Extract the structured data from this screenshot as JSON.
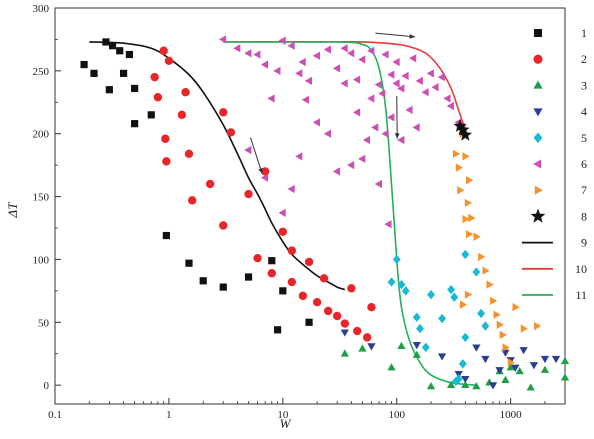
{
  "chart_data": {
    "type": "scatter",
    "xlabel": "W",
    "ylabel": "ΔT",
    "xscale": "log",
    "xlim": [
      0.1,
      3000
    ],
    "ylim": [
      -15,
      300
    ],
    "grid": false,
    "legend_position": "right",
    "x_tick_labels": [
      "0.1",
      "1",
      "10",
      "100",
      "1000"
    ],
    "x_tick_values": [
      0.1,
      1,
      10,
      100,
      1000
    ],
    "y_tick_values": [
      0,
      50,
      100,
      150,
      200,
      250,
      300
    ],
    "y_tick_labels": [
      "0",
      "50",
      "100",
      "150",
      "200",
      "250",
      "300"
    ],
    "series": [
      {
        "name": "1",
        "marker": "square",
        "color": "#111111",
        "points": [
          [
            0.18,
            255
          ],
          [
            0.22,
            248
          ],
          [
            0.28,
            273
          ],
          [
            0.3,
            235
          ],
          [
            0.32,
            270
          ],
          [
            0.37,
            266
          ],
          [
            0.4,
            248
          ],
          [
            0.45,
            263
          ],
          [
            0.5,
            236
          ],
          [
            0.5,
            208
          ],
          [
            0.7,
            215
          ],
          [
            0.95,
            119
          ],
          [
            1.5,
            97
          ],
          [
            2.0,
            83
          ],
          [
            3.0,
            78
          ],
          [
            5.0,
            86
          ],
          [
            8.0,
            99
          ],
          [
            9.0,
            44
          ],
          [
            10.0,
            75
          ],
          [
            17.0,
            50
          ]
        ]
      },
      {
        "name": "2",
        "marker": "circle",
        "color": "#e8262a",
        "points": [
          [
            0.75,
            245
          ],
          [
            0.8,
            229
          ],
          [
            0.9,
            266
          ],
          [
            0.93,
            196
          ],
          [
            0.95,
            178
          ],
          [
            1.0,
            258
          ],
          [
            1.3,
            215
          ],
          [
            1.4,
            233
          ],
          [
            1.5,
            184
          ],
          [
            1.6,
            147
          ],
          [
            2.3,
            160
          ],
          [
            3.0,
            127
          ],
          [
            3.0,
            217
          ],
          [
            3.5,
            201
          ],
          [
            5.0,
            152
          ],
          [
            6.0,
            101
          ],
          [
            7.0,
            170
          ],
          [
            8.0,
            89
          ],
          [
            10,
            122
          ],
          [
            12,
            107
          ],
          [
            12,
            82
          ],
          [
            15,
            71
          ],
          [
            17,
            98
          ],
          [
            20,
            66
          ],
          [
            23,
            85
          ],
          [
            25,
            59
          ],
          [
            30,
            55
          ],
          [
            35,
            49
          ],
          [
            40,
            77
          ],
          [
            45,
            43
          ],
          [
            55,
            38
          ],
          [
            60,
            62
          ]
        ]
      },
      {
        "name": "3",
        "marker": "triangle-up",
        "color": "#1f9e45",
        "points": [
          [
            35,
            25
          ],
          [
            50,
            29
          ],
          [
            90,
            14
          ],
          [
            110,
            31
          ],
          [
            150,
            24
          ],
          [
            200,
            -1
          ],
          [
            300,
            0
          ],
          [
            400,
            0
          ],
          [
            500,
            -1
          ],
          [
            650,
            2
          ],
          [
            800,
            11
          ],
          [
            900,
            4
          ],
          [
            1000,
            14
          ],
          [
            1200,
            11
          ],
          [
            1500,
            -2
          ],
          [
            2000,
            12
          ],
          [
            3000,
            6
          ],
          [
            3000,
            19
          ]
        ]
      },
      {
        "name": "4",
        "marker": "triangle-down",
        "color": "#2c3e90",
        "points": [
          [
            35,
            42
          ],
          [
            60,
            31
          ],
          [
            150,
            32
          ],
          [
            250,
            23
          ],
          [
            350,
            9
          ],
          [
            400,
            5
          ],
          [
            500,
            30
          ],
          [
            600,
            21
          ],
          [
            700,
            0
          ],
          [
            800,
            12
          ],
          [
            900,
            26
          ],
          [
            1000,
            20
          ],
          [
            1100,
            14
          ],
          [
            1300,
            28
          ],
          [
            1600,
            16
          ],
          [
            2000,
            21
          ],
          [
            2500,
            21
          ]
        ]
      },
      {
        "name": "5",
        "marker": "diamond",
        "color": "#17b9d4",
        "points": [
          [
            90,
            82
          ],
          [
            100,
            100
          ],
          [
            110,
            80
          ],
          [
            120,
            75
          ],
          [
            150,
            54
          ],
          [
            160,
            45
          ],
          [
            180,
            30
          ],
          [
            200,
            72
          ],
          [
            250,
            53
          ],
          [
            300,
            76
          ],
          [
            320,
            70
          ],
          [
            380,
            17
          ],
          [
            400,
            38
          ],
          [
            500,
            90
          ],
          [
            550,
            57
          ],
          [
            600,
            47
          ],
          [
            400,
            104
          ],
          [
            350,
            5
          ],
          [
            330,
            3
          ]
        ]
      },
      {
        "name": "6",
        "marker": "triangle-left",
        "color": "#cc4fb3",
        "points": [
          [
            3,
            275
          ],
          [
            4,
            268
          ],
          [
            5,
            264
          ],
          [
            6,
            263
          ],
          [
            7,
            255
          ],
          [
            9,
            250
          ],
          [
            10,
            274
          ],
          [
            12,
            270
          ],
          [
            14,
            248
          ],
          [
            15,
            257
          ],
          [
            17,
            242
          ],
          [
            20,
            262
          ],
          [
            25,
            267
          ],
          [
            30,
            252
          ],
          [
            35,
            268
          ],
          [
            40,
            264
          ],
          [
            45,
            243
          ],
          [
            50,
            259
          ],
          [
            60,
            266
          ],
          [
            70,
            239
          ],
          [
            80,
            263
          ],
          [
            90,
            247
          ],
          [
            100,
            257
          ],
          [
            110,
            236
          ],
          [
            120,
            246
          ],
          [
            140,
            260
          ],
          [
            160,
            242
          ],
          [
            180,
            233
          ],
          [
            200,
            248
          ],
          [
            220,
            237
          ],
          [
            250,
            245
          ],
          [
            280,
            228
          ],
          [
            300,
            222
          ],
          [
            350,
            209
          ],
          [
            5,
            187
          ],
          [
            7,
            165
          ],
          [
            10,
            137
          ],
          [
            12,
            156
          ],
          [
            14,
            182
          ],
          [
            16,
            227
          ],
          [
            20,
            209
          ],
          [
            25,
            200
          ],
          [
            30,
            170
          ],
          [
            35,
            240
          ],
          [
            40,
            175
          ],
          [
            45,
            217
          ],
          [
            50,
            180
          ],
          [
            55,
            195
          ],
          [
            60,
            228
          ],
          [
            65,
            205
          ],
          [
            70,
            160
          ],
          [
            75,
            232
          ],
          [
            80,
            200
          ],
          [
            85,
            128
          ],
          [
            90,
            213
          ],
          [
            100,
            240
          ],
          [
            110,
            195
          ],
          [
            130,
            219
          ],
          [
            150,
            205
          ],
          [
            8,
            228
          ]
        ]
      },
      {
        "name": "7",
        "marker": "triangle-right",
        "color": "#f5922c",
        "points": [
          [
            330,
            184
          ],
          [
            350,
            173
          ],
          [
            360,
            155
          ],
          [
            380,
            200
          ],
          [
            400,
            182
          ],
          [
            420,
            145
          ],
          [
            450,
            133
          ],
          [
            500,
            118
          ],
          [
            550,
            102
          ],
          [
            600,
            91
          ],
          [
            650,
            80
          ],
          [
            700,
            67
          ],
          [
            750,
            56
          ],
          [
            800,
            48
          ],
          [
            850,
            40
          ],
          [
            900,
            30
          ],
          [
            1000,
            18
          ],
          [
            1100,
            62
          ],
          [
            1300,
            45
          ],
          [
            1700,
            47
          ],
          [
            380,
            64
          ],
          [
            420,
            72
          ],
          [
            400,
            132
          ],
          [
            430,
            163
          ],
          [
            430,
            120
          ]
        ]
      },
      {
        "name": "8",
        "marker": "star",
        "color": "#111111",
        "points": [
          [
            360,
            206
          ],
          [
            380,
            203
          ],
          [
            400,
            199
          ]
        ]
      }
    ],
    "curves": [
      {
        "name": "9",
        "color": "#111111",
        "points": [
          [
            0.2,
            273
          ],
          [
            0.4,
            272
          ],
          [
            0.7,
            268
          ],
          [
            1,
            260
          ],
          [
            1.5,
            247
          ],
          [
            2,
            233
          ],
          [
            3,
            207
          ],
          [
            4,
            184
          ],
          [
            5,
            165
          ],
          [
            6,
            152
          ],
          [
            7,
            140
          ],
          [
            8,
            129
          ],
          [
            10,
            114
          ],
          [
            12,
            104
          ],
          [
            15,
            96
          ],
          [
            20,
            87
          ],
          [
            25,
            82
          ],
          [
            30,
            78
          ],
          [
            35,
            76
          ]
        ]
      },
      {
        "name": "10",
        "color": "#e63c3c",
        "points": [
          [
            3,
            273
          ],
          [
            20,
            273
          ],
          [
            50,
            273
          ],
          [
            80,
            272
          ],
          [
            120,
            270
          ],
          [
            180,
            264
          ],
          [
            240,
            252
          ],
          [
            300,
            236
          ],
          [
            340,
            222
          ],
          [
            380,
            209
          ],
          [
            400,
            205
          ]
        ]
      },
      {
        "name": "11",
        "color": "#22b05a",
        "points": [
          [
            3,
            273
          ],
          [
            30,
            273
          ],
          [
            50,
            271
          ],
          [
            60,
            266
          ],
          [
            70,
            252
          ],
          [
            80,
            220
          ],
          [
            90,
            160
          ],
          [
            100,
            100
          ],
          [
            110,
            62
          ],
          [
            130,
            35
          ],
          [
            160,
            18
          ],
          [
            200,
            8
          ],
          [
            300,
            2
          ],
          [
            500,
            0
          ]
        ]
      }
    ]
  }
}
